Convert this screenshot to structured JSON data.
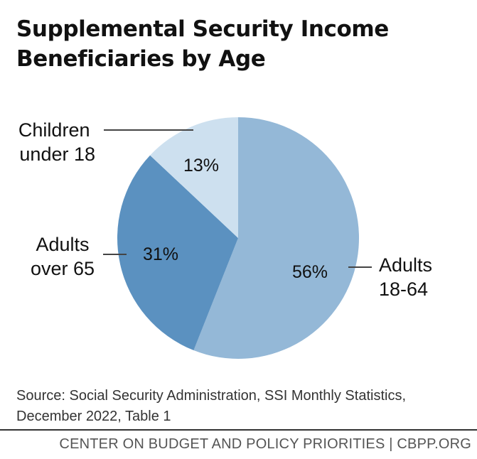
{
  "header": {
    "title_line1": "Supplemental Security Income",
    "title_line2": "Beneficiaries by Age"
  },
  "chart_data": {
    "type": "pie",
    "title": "Supplemental Security Income Beneficiaries by Age",
    "slices": [
      {
        "label_line1": "Adults",
        "label_line2": "18-64",
        "value": 56,
        "value_label": "56%",
        "color": "#94b8d7"
      },
      {
        "label_line1": "Adults",
        "label_line2": "over 65",
        "value": 31,
        "value_label": "31%",
        "color": "#5b91c0"
      },
      {
        "label_line1": "Children",
        "label_line2": "under 18",
        "value": 13,
        "value_label": "13%",
        "color": "#cde0ef"
      }
    ],
    "start": "12 o'clock",
    "direction": "clockwise"
  },
  "source": {
    "line1": "Source: Social Security Administration, SSI Monthly Statistics,",
    "line2": "December 2022, Table 1"
  },
  "footer": {
    "text": "CENTER ON BUDGET AND POLICY PRIORITIES | CBPP.ORG"
  }
}
